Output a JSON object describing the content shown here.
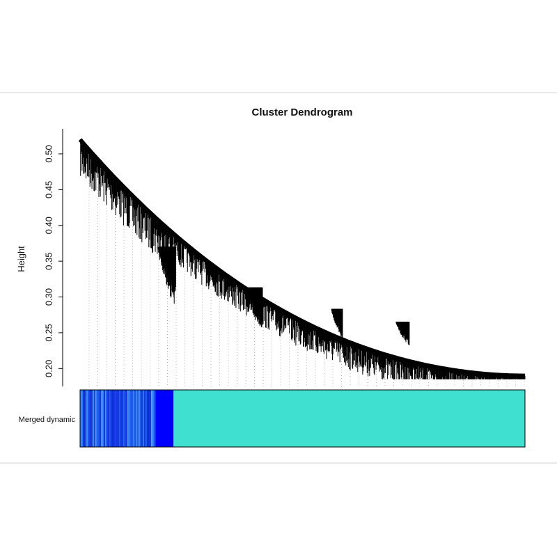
{
  "chart_data": {
    "type": "dendrogram",
    "title": "Cluster Dendrogram",
    "ylabel": "Height",
    "xlabel": "",
    "ylim": [
      0.175,
      0.535
    ],
    "yticks": [
      0.2,
      0.25,
      0.3,
      0.35,
      0.4,
      0.45,
      0.5
    ],
    "ytick_labels": [
      "0.20",
      "0.25",
      "0.30",
      "0.35",
      "0.40",
      "0.45",
      "0.50"
    ],
    "grid": false,
    "top_height": 0.52,
    "bottom_height": 0.19,
    "sub_clusters": [
      {
        "merge_height": 0.37,
        "lowest_leaf": 0.28
      },
      {
        "merge_height": 0.313,
        "lowest_leaf": 0.25
      },
      {
        "merge_height": 0.283,
        "lowest_leaf": 0.24
      },
      {
        "merge_height": 0.265,
        "lowest_leaf": 0.23
      }
    ],
    "color_bar": {
      "label": "Merged dynamic",
      "segments": [
        {
          "module": "blue",
          "color": "#1a3cf0",
          "fraction": 0.17,
          "mixed": true
        },
        {
          "module": "blue",
          "color": "#0000ff",
          "fraction": 0.04
        },
        {
          "module": "turquoise",
          "color": "#40e0d0",
          "fraction": 0.79
        }
      ]
    }
  }
}
